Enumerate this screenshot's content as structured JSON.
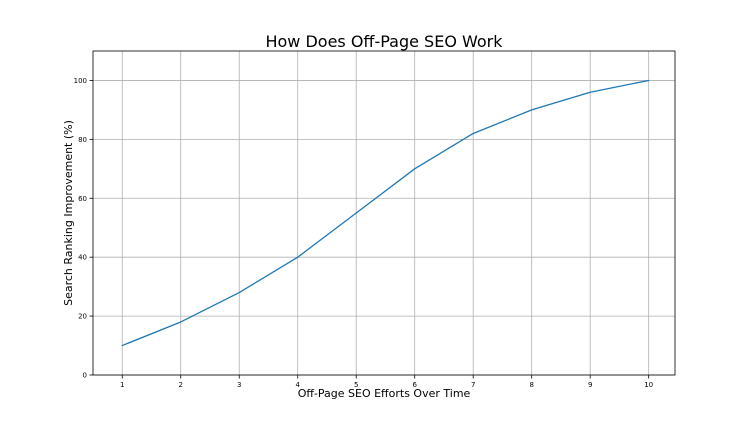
{
  "chart_data": {
    "type": "line",
    "title": "How Does Off-Page SEO Work",
    "xlabel": "Off-Page SEO Efforts Over Time",
    "ylabel": "Search Ranking Improvement (%)",
    "x": [
      1,
      2,
      3,
      4,
      5,
      6,
      7,
      8,
      9,
      10
    ],
    "series": [
      {
        "values": [
          10,
          18,
          28,
          40,
          55,
          70,
          82,
          90,
          96,
          100
        ],
        "color": "#1f77b4"
      }
    ],
    "xlim": [
      0.5,
      10.45
    ],
    "ylim": [
      0,
      110
    ],
    "xticks": [
      1,
      2,
      3,
      4,
      5,
      6,
      7,
      8,
      9,
      10
    ],
    "yticks": [
      0,
      20,
      40,
      60,
      80,
      100
    ],
    "grid": true
  }
}
